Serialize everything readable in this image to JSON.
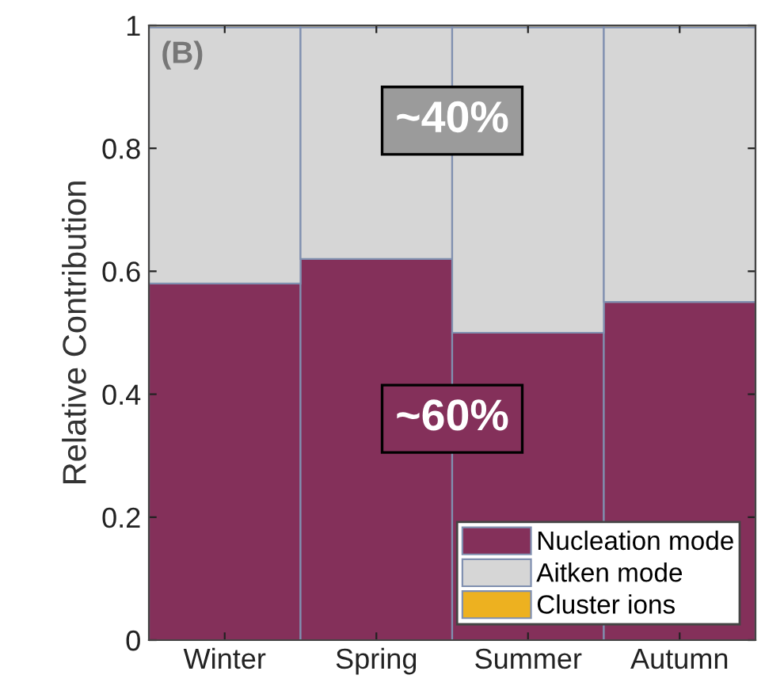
{
  "chart_data": {
    "type": "bar",
    "stacked": true,
    "ylabel": "Relative Contribution",
    "categories": [
      "Winter",
      "Spring",
      "Summer",
      "Autumn"
    ],
    "series": [
      {
        "name": "Nucleation mode",
        "color": "#84305a",
        "values": [
          0.58,
          0.62,
          0.5,
          0.55
        ]
      },
      {
        "name": "Aitken mode",
        "color": "#d6d6d6",
        "values": [
          0.417,
          0.377,
          0.497,
          0.447
        ]
      },
      {
        "name": "Cluster ions",
        "color": "#edb120",
        "values": [
          0.003,
          0.003,
          0.003,
          0.003
        ]
      }
    ],
    "ylim": [
      0,
      1
    ],
    "yticks": [
      0,
      0.2,
      0.4,
      0.6,
      0.8,
      1
    ],
    "annotations": [
      "(B)",
      "~40%",
      "~60%"
    ],
    "legend": "bottom right",
    "grid": false
  }
}
